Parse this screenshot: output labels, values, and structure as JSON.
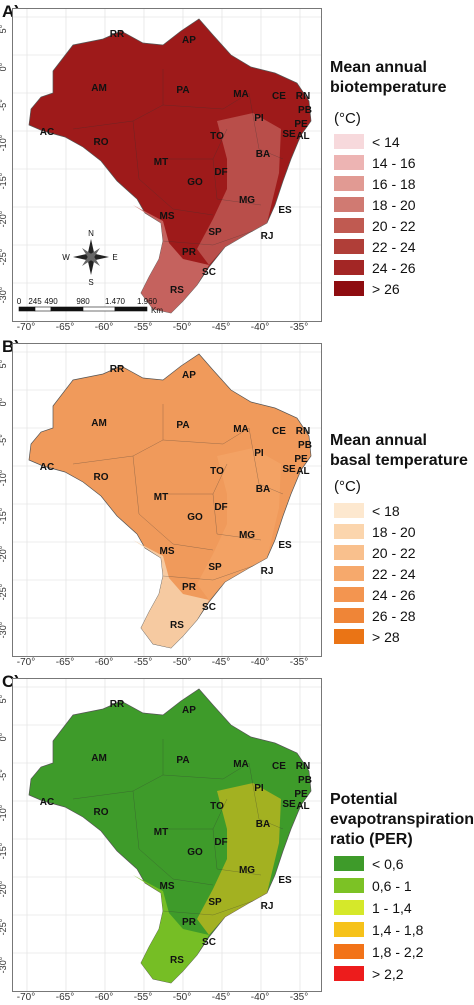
{
  "panels": [
    {
      "label": "A)",
      "title_line1": "Mean annual",
      "title_line2": "biotemperature",
      "title_line3": "",
      "unit": "(°C)",
      "map_fill": "#9e1a1a",
      "map_fill_south": "#c96a66",
      "legend": [
        {
          "label": "< 14",
          "color": "#f7d9dc"
        },
        {
          "label": "14 - 16",
          "color": "#edb4b3"
        },
        {
          "label": "16 - 18",
          "color": "#e19a93"
        },
        {
          "label": "18 - 20",
          "color": "#d07a72"
        },
        {
          "label": "20 - 22",
          "color": "#c05a51"
        },
        {
          "label": "22 - 24",
          "color": "#b03e38"
        },
        {
          "label": "24 - 26",
          "color": "#a32625"
        },
        {
          "label": "> 26",
          "color": "#8e0c10"
        }
      ]
    },
    {
      "label": "B)",
      "title_line1": "Mean annual",
      "title_line2": "basal temperature",
      "title_line3": "",
      "unit": "(°C)",
      "map_fill": "#f09a5b",
      "map_fill_south": "#f6cfa8",
      "legend": [
        {
          "label": "< 18",
          "color": "#fde8cf"
        },
        {
          "label": "18 - 20",
          "color": "#fbd5ad"
        },
        {
          "label": "20 - 22",
          "color": "#f9c08d"
        },
        {
          "label": "22 - 24",
          "color": "#f6a96c"
        },
        {
          "label": "24 - 26",
          "color": "#f39550"
        },
        {
          "label": "26 - 28",
          "color": "#ef8537"
        },
        {
          "label": "> 28",
          "color": "#ea7415"
        }
      ]
    },
    {
      "label": "C)",
      "title_line1": "Potential",
      "title_line2": "evapotranspiration",
      "title_line3": "ratio (PER)",
      "unit": "",
      "map_fill": "#3e9b2a",
      "map_fill_south": "#7cc225",
      "legend": [
        {
          "label": "< 0,6",
          "color": "#3e9b2a"
        },
        {
          "label": "0,6 - 1",
          "color": "#7cc225"
        },
        {
          "label": "1 - 1,4",
          "color": "#d5e82a"
        },
        {
          "label": "1,4 - 1,8",
          "color": "#f6c21a"
        },
        {
          "label": "1,8 - 2,2",
          "color": "#f27318"
        },
        {
          "label": "> 2,2",
          "color": "#ed1c1c"
        }
      ]
    }
  ],
  "y_ticks": [
    "5°",
    "0°",
    "-5°",
    "-10°",
    "-15°",
    "-20°",
    "-25°",
    "-30°"
  ],
  "x_ticks": [
    "-70°",
    "-65°",
    "-60°",
    "-55°",
    "-50°",
    "-45°",
    "-40°",
    "-35°"
  ],
  "states": [
    "RR",
    "AP",
    "AM",
    "PA",
    "MA",
    "CE",
    "RN",
    "PB",
    "PE",
    "AL",
    "SE",
    "AC",
    "RO",
    "PI",
    "TO",
    "BA",
    "MT",
    "GO",
    "DF",
    "MG",
    "ES",
    "MS",
    "SP",
    "RJ",
    "PR",
    "SC",
    "RS"
  ],
  "compass": {
    "n": "N",
    "s": "S",
    "e": "E",
    "w": "W"
  },
  "scale_bar": {
    "labels": [
      "0",
      "245",
      "490",
      "980",
      "1.470",
      "1.960"
    ],
    "unit": "Km"
  }
}
